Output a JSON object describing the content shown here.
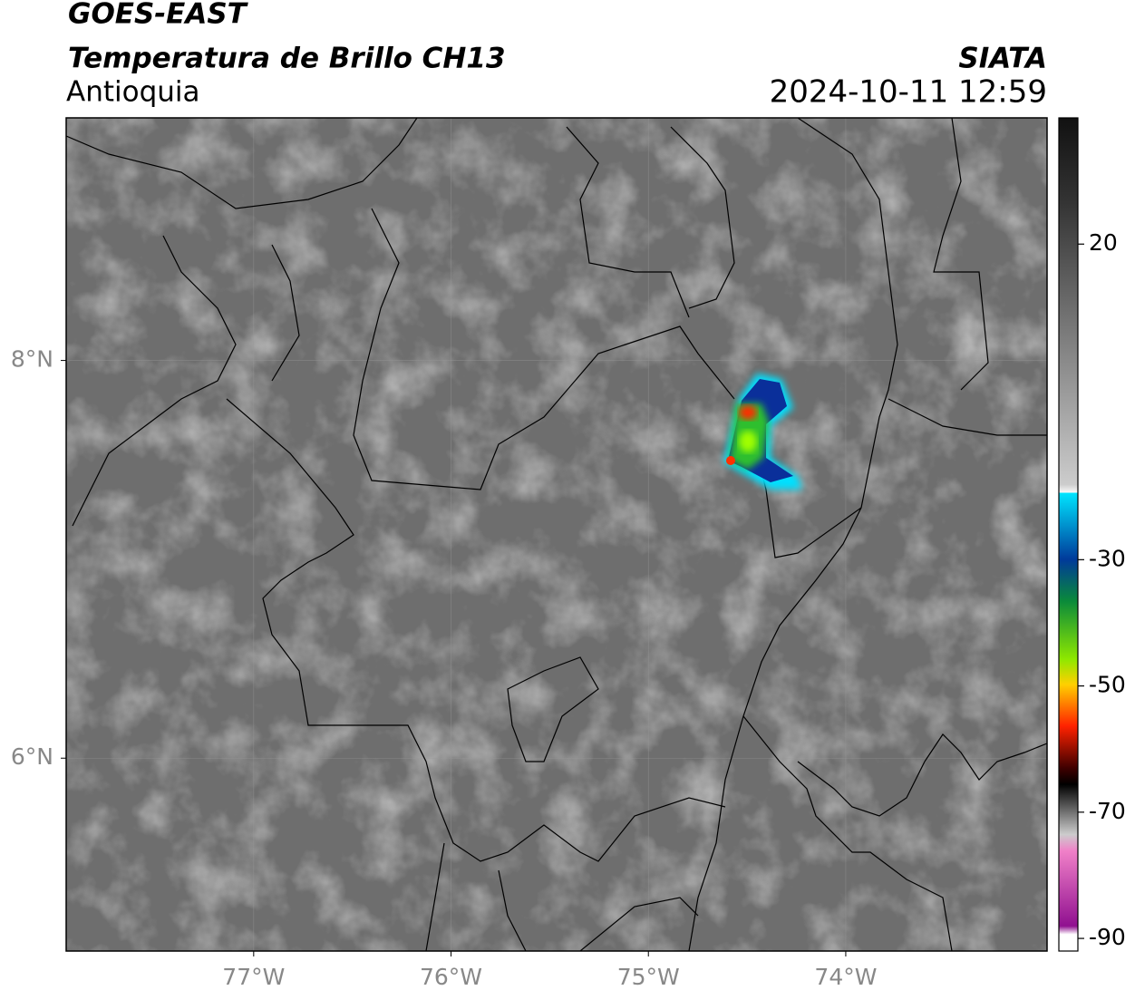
{
  "header": {
    "title": "GOES-EAST",
    "subtitle": "Temperatura de Brillo CH13",
    "region": "Antioquia",
    "source": "SIATA",
    "datetime": "2024-10-11 12:59"
  },
  "map": {
    "lon_range": [
      -77.95,
      -72.98
    ],
    "lat_range": [
      5.03,
      9.22
    ],
    "lon_ticks": [
      {
        "value": -77,
        "label": "77°W"
      },
      {
        "value": -76,
        "label": "76°W"
      },
      {
        "value": -75,
        "label": "75°W"
      },
      {
        "value": -74,
        "label": "74°W"
      }
    ],
    "lat_ticks": [
      {
        "value": 8,
        "label": "8°N"
      },
      {
        "value": 6,
        "label": "6°N"
      }
    ]
  },
  "colorbar": {
    "range": [
      -92,
      40
    ],
    "ticks": [
      20,
      -30,
      -50,
      -70,
      -90
    ]
  }
}
